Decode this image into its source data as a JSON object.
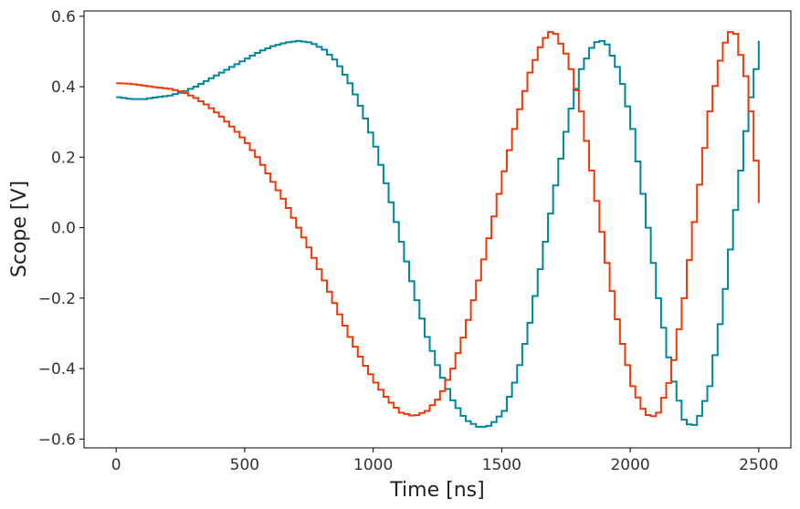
{
  "chart_data": {
    "type": "line",
    "title": "",
    "xlabel": "Time [ns]",
    "ylabel": "Scope [V]",
    "xlim": [
      -125,
      2625
    ],
    "ylim": [
      -0.625,
      0.615
    ],
    "x_ticks": [
      0,
      500,
      1000,
      1500,
      2000,
      2500
    ],
    "x_tick_labels": [
      "0",
      "500",
      "1000",
      "1500",
      "2000",
      "2500"
    ],
    "y_ticks": [
      -0.6,
      -0.4,
      -0.2,
      0.0,
      0.2,
      0.4,
      0.6
    ],
    "y_tick_labels": [
      "−0.6",
      "−0.4",
      "−0.2",
      "0.0",
      "0.2",
      "0.4",
      "0.6"
    ],
    "grid": false,
    "legend": "none",
    "step_ns": 20,
    "series": [
      {
        "color": "#00869c",
        "x": [
          0,
          50,
          100,
          150,
          200,
          250,
          300,
          350,
          400,
          450,
          500,
          550,
          600,
          650,
          700,
          750,
          800,
          850,
          900,
          950,
          1000,
          1050,
          1100,
          1150,
          1200,
          1250,
          1300,
          1350,
          1400,
          1430,
          1450,
          1500,
          1550,
          1600,
          1650,
          1700,
          1750,
          1800,
          1850,
          1880,
          1900,
          1950,
          2000,
          2050,
          2100,
          2150,
          2200,
          2230,
          2250,
          2300,
          2350,
          2400,
          2450,
          2500
        ],
        "values": [
          0.37,
          0.365,
          0.365,
          0.37,
          0.375,
          0.385,
          0.4,
          0.42,
          0.44,
          0.46,
          0.48,
          0.5,
          0.515,
          0.525,
          0.53,
          0.525,
          0.505,
          0.47,
          0.41,
          0.33,
          0.23,
          0.1,
          -0.04,
          -0.18,
          -0.31,
          -0.41,
          -0.49,
          -0.545,
          -0.565,
          -0.565,
          -0.56,
          -0.52,
          -0.42,
          -0.27,
          -0.08,
          0.12,
          0.31,
          0.45,
          0.525,
          0.53,
          0.52,
          0.44,
          0.28,
          0.05,
          -0.2,
          -0.41,
          -0.545,
          -0.565,
          -0.555,
          -0.45,
          -0.23,
          0.05,
          0.33,
          0.53
        ]
      },
      {
        "color": "#ee3a0a",
        "x": [
          0,
          50,
          100,
          150,
          200,
          250,
          300,
          350,
          400,
          450,
          500,
          550,
          600,
          650,
          700,
          750,
          800,
          850,
          900,
          950,
          1000,
          1050,
          1100,
          1150,
          1200,
          1250,
          1300,
          1350,
          1400,
          1450,
          1500,
          1550,
          1600,
          1650,
          1680,
          1700,
          1750,
          1800,
          1850,
          1900,
          1950,
          2000,
          2050,
          2080,
          2100,
          2150,
          2200,
          2250,
          2300,
          2350,
          2380,
          2400,
          2450,
          2480,
          2500
        ],
        "values": [
          0.41,
          0.408,
          0.403,
          0.398,
          0.394,
          0.385,
          0.368,
          0.345,
          0.315,
          0.28,
          0.24,
          0.19,
          0.13,
          0.07,
          0.0,
          -0.07,
          -0.15,
          -0.23,
          -0.31,
          -0.38,
          -0.44,
          -0.49,
          -0.525,
          -0.535,
          -0.52,
          -0.48,
          -0.4,
          -0.29,
          -0.15,
          0.0,
          0.16,
          0.31,
          0.44,
          0.53,
          0.555,
          0.55,
          0.48,
          0.33,
          0.12,
          -0.1,
          -0.3,
          -0.45,
          -0.53,
          -0.535,
          -0.525,
          -0.42,
          -0.2,
          0.07,
          0.33,
          0.51,
          0.555,
          0.55,
          0.4,
          0.19,
          0.07
        ]
      }
    ]
  }
}
